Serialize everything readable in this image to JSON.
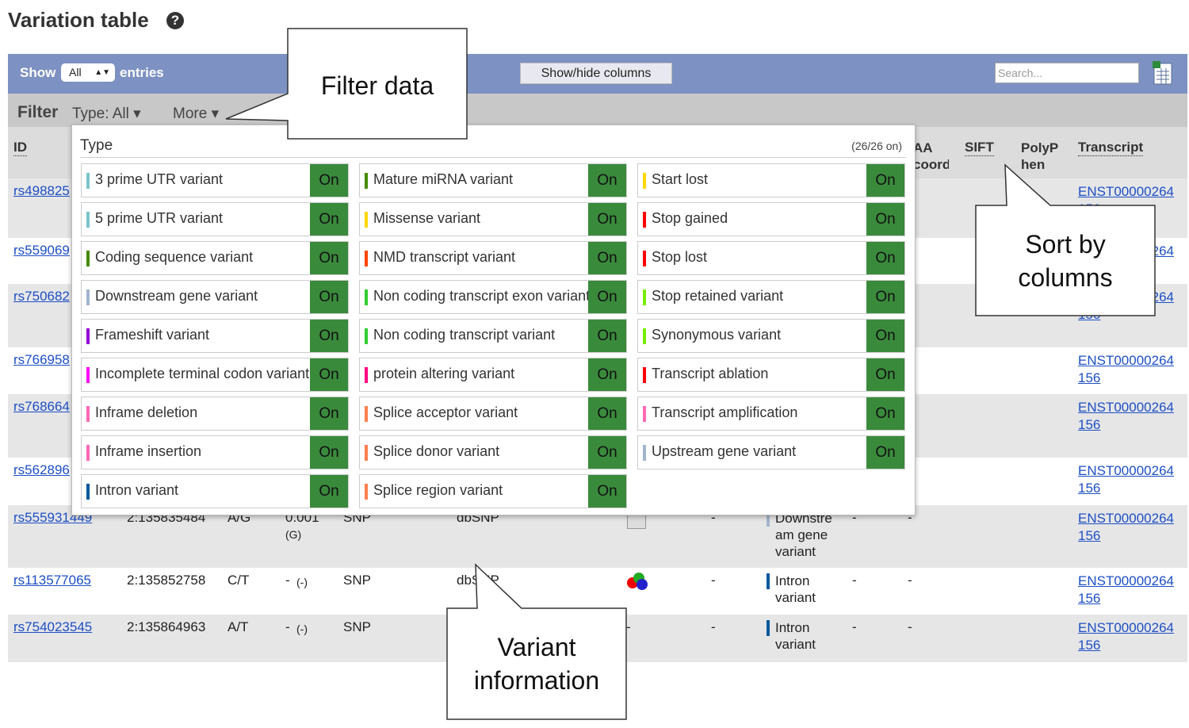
{
  "header": {
    "title": "Variation table"
  },
  "toolbar": {
    "show": "Show",
    "select": "All",
    "entries": "entries",
    "columns_button": "Show/hide columns",
    "search_placeholder": "Search..."
  },
  "filter_bar": {
    "label": "Filter",
    "type": "Type: All",
    "more": "More"
  },
  "table": {
    "headers": {
      "id": "ID",
      "aa_coord": "AA coord",
      "sift": "SIFT",
      "polyphen": "PolyPhen",
      "transcript": "Transcript"
    },
    "rows": [
      {
        "id": "rs498825",
        "transcript": "ENST00000264156"
      },
      {
        "id": "rs559069",
        "transcript": "ENST00000264156"
      },
      {
        "id": "rs750682",
        "transcript": "ENST00000264156"
      },
      {
        "id": "rs766958",
        "transcript": "ENST00000264156"
      },
      {
        "id": "rs768664",
        "transcript": "ENST00000264156"
      },
      {
        "id": "rs562896",
        "transcript": "ENST00000264156"
      },
      {
        "id": "rs555931449",
        "location": "2:135835484",
        "alleles": "A/G",
        "maf": "0.001",
        "maf_allele": "(G)",
        "class": "SNP",
        "source": "dbSNP",
        "clinical": "-",
        "type": "Downstream gene variant",
        "type_color": "#a2b5cd",
        "sift": "-",
        "polyphen": "-",
        "transcript": "ENST00000264156"
      },
      {
        "id": "rs113577065",
        "location": "2:135852758",
        "alleles": "C/T",
        "maf": "-",
        "maf_allele": "(-)",
        "class": "SNP",
        "source": "dbSNP",
        "clinical": "-",
        "type": "Intron variant",
        "type_color": "#02599c",
        "sift": "-",
        "polyphen": "-",
        "transcript": "ENST00000264156"
      },
      {
        "id": "rs754023545",
        "location": "2:135864963",
        "alleles": "A/T",
        "maf": "-",
        "maf_allele": "(-)",
        "class": "SNP",
        "evidence": "-",
        "clinical": "-",
        "type": "Intron variant",
        "type_color": "#02599c",
        "sift": "-",
        "polyphen": "-",
        "transcript": "ENST00000264156"
      }
    ]
  },
  "filter_popup": {
    "title": "Type",
    "status": "(26/26 on)",
    "items": [
      {
        "label": "3 prime UTR variant",
        "color": "#7ac5cd",
        "state": "On"
      },
      {
        "label": "5 prime UTR variant",
        "color": "#7ac5cd",
        "state": "On"
      },
      {
        "label": "Coding sequence variant",
        "color": "#458b00",
        "state": "On"
      },
      {
        "label": "Downstream gene variant",
        "color": "#a2b5cd",
        "state": "On"
      },
      {
        "label": "Frameshift variant",
        "color": "#9400d3",
        "state": "On"
      },
      {
        "label": "Incomplete terminal codon variant",
        "color": "#ff00ff",
        "state": "On"
      },
      {
        "label": "Inframe deletion",
        "color": "#ff69b4",
        "state": "On"
      },
      {
        "label": "Inframe insertion",
        "color": "#ff69b4",
        "state": "On"
      },
      {
        "label": "Intron variant",
        "color": "#02599c",
        "state": "On"
      },
      {
        "label": "Mature miRNA variant",
        "color": "#458b00",
        "state": "On"
      },
      {
        "label": "Missense variant",
        "color": "#ffd700",
        "state": "On"
      },
      {
        "label": "NMD transcript variant",
        "color": "#ff4500",
        "state": "On"
      },
      {
        "label": "Non coding transcript exon variant",
        "color": "#32cd32",
        "state": "On"
      },
      {
        "label": "Non coding transcript variant",
        "color": "#32cd32",
        "state": "On"
      },
      {
        "label": "protein altering variant",
        "color": "#ff0080",
        "state": "On"
      },
      {
        "label": "Splice acceptor variant",
        "color": "#ff7f50",
        "state": "On"
      },
      {
        "label": "Splice donor variant",
        "color": "#ff7f50",
        "state": "On"
      },
      {
        "label": "Splice region variant",
        "color": "#ff7f50",
        "state": "On"
      },
      {
        "label": "Start lost",
        "color": "#ffd700",
        "state": "On"
      },
      {
        "label": "Stop gained",
        "color": "#ff0000",
        "state": "On"
      },
      {
        "label": "Stop lost",
        "color": "#ff0000",
        "state": "On"
      },
      {
        "label": "Stop retained variant",
        "color": "#76ee00",
        "state": "On"
      },
      {
        "label": "Synonymous variant",
        "color": "#76ee00",
        "state": "On"
      },
      {
        "label": "Transcript ablation",
        "color": "#ff0000",
        "state": "On"
      },
      {
        "label": "Transcript amplification",
        "color": "#ff69b4",
        "state": "On"
      },
      {
        "label": "Upstream gene variant",
        "color": "#a2b5cd",
        "state": "On"
      }
    ]
  },
  "callouts": {
    "filter": "Filter data",
    "sort": "Sort by columns",
    "variant": "Variant information"
  }
}
